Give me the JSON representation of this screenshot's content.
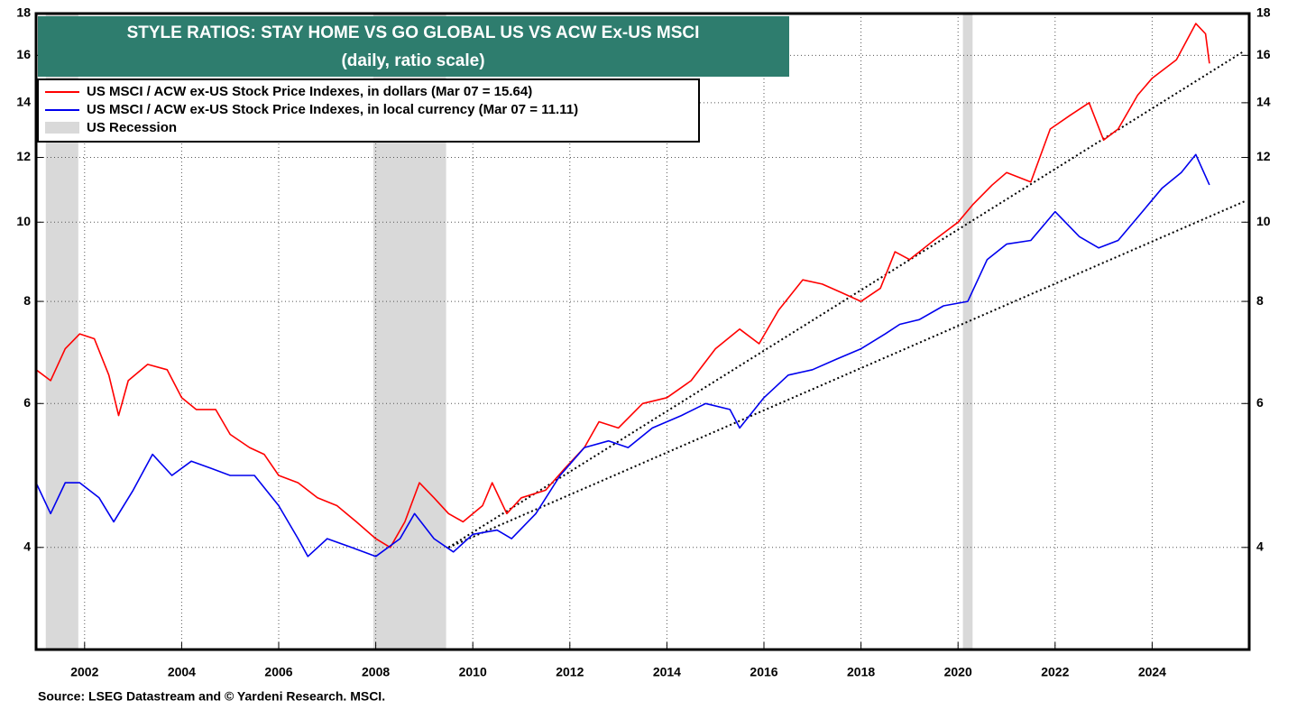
{
  "chart_data": {
    "type": "line",
    "title": "STYLE RATIOS: STAY HOME VS GO GLOBAL US VS ACW Ex-US MSCI",
    "subtitle": "(daily, ratio scale)",
    "source": "Source: LSEG Datastream and © Yardeni Research. MSCI.",
    "log_scale": true,
    "xlim": [
      2001,
      2026
    ],
    "xticks": [
      2002,
      2004,
      2006,
      2008,
      2010,
      2012,
      2014,
      2016,
      2018,
      2020,
      2022,
      2024
    ],
    "ylim": [
      3,
      18
    ],
    "yticks": [
      4,
      6,
      8,
      10,
      12,
      14,
      16,
      18
    ],
    "series": [
      {
        "name": "US MSCI / ACW ex-US Stock Price Indexes, in dollars (Mar 07 = 15.64)",
        "color": "#ff0000",
        "x": [
          2001.0,
          2001.3,
          2001.6,
          2001.9,
          2002.2,
          2002.5,
          2002.7,
          2002.9,
          2003.3,
          2003.7,
          2004.0,
          2004.3,
          2004.7,
          2005.0,
          2005.4,
          2005.7,
          2006.0,
          2006.4,
          2006.8,
          2007.2,
          2007.6,
          2008.0,
          2008.3,
          2008.6,
          2008.9,
          2009.2,
          2009.5,
          2009.8,
          2010.2,
          2010.4,
          2010.7,
          2011.0,
          2011.5,
          2011.9,
          2012.3,
          2012.6,
          2013.0,
          2013.5,
          2014.0,
          2014.5,
          2015.0,
          2015.5,
          2015.9,
          2016.3,
          2016.8,
          2017.2,
          2017.6,
          2018.0,
          2018.4,
          2018.7,
          2019.0,
          2019.5,
          2020.0,
          2020.3,
          2020.7,
          2021.0,
          2021.5,
          2021.9,
          2022.3,
          2022.7,
          2023.0,
          2023.3,
          2023.7,
          2024.0,
          2024.5,
          2024.9,
          2025.1,
          2025.18
        ],
        "values": [
          6.6,
          6.4,
          7.0,
          7.3,
          7.2,
          6.5,
          5.8,
          6.4,
          6.7,
          6.6,
          6.1,
          5.9,
          5.9,
          5.5,
          5.3,
          5.2,
          4.9,
          4.8,
          4.6,
          4.5,
          4.3,
          4.1,
          4.0,
          4.3,
          4.8,
          4.6,
          4.4,
          4.3,
          4.5,
          4.8,
          4.4,
          4.6,
          4.7,
          5.0,
          5.3,
          5.7,
          5.6,
          6.0,
          6.1,
          6.4,
          7.0,
          7.4,
          7.1,
          7.8,
          8.5,
          8.4,
          8.2,
          8.0,
          8.3,
          9.2,
          9.0,
          9.5,
          10.0,
          10.5,
          11.1,
          11.5,
          11.2,
          13.0,
          13.5,
          14.0,
          12.6,
          13.0,
          14.3,
          15.0,
          15.8,
          17.5,
          17.0,
          15.64
        ]
      },
      {
        "name": "US MSCI / ACW ex-US Stock Price Indexes, in local currency (Mar 07 = 11.11)",
        "color": "#0000ee",
        "x": [
          2001.0,
          2001.3,
          2001.6,
          2001.9,
          2002.3,
          2002.6,
          2003.0,
          2003.4,
          2003.8,
          2004.2,
          2004.6,
          2005.0,
          2005.5,
          2006.0,
          2006.4,
          2006.6,
          2007.0,
          2007.5,
          2008.0,
          2008.5,
          2008.8,
          2009.2,
          2009.6,
          2010.0,
          2010.5,
          2010.8,
          2011.3,
          2011.8,
          2012.3,
          2012.8,
          2013.2,
          2013.7,
          2014.3,
          2014.8,
          2015.3,
          2015.5,
          2016.0,
          2016.5,
          2017.0,
          2017.5,
          2018.0,
          2018.5,
          2018.8,
          2019.2,
          2019.7,
          2020.2,
          2020.6,
          2021.0,
          2021.5,
          2022.0,
          2022.5,
          2022.9,
          2023.3,
          2023.8,
          2024.2,
          2024.6,
          2024.9,
          2025.18
        ],
        "values": [
          4.8,
          4.4,
          4.8,
          4.8,
          4.6,
          4.3,
          4.7,
          5.2,
          4.9,
          5.1,
          5.0,
          4.9,
          4.9,
          4.5,
          4.1,
          3.9,
          4.1,
          4.0,
          3.9,
          4.1,
          4.4,
          4.1,
          3.95,
          4.15,
          4.2,
          4.1,
          4.4,
          4.9,
          5.3,
          5.4,
          5.3,
          5.6,
          5.8,
          6.0,
          5.9,
          5.6,
          6.1,
          6.5,
          6.6,
          6.8,
          7.0,
          7.3,
          7.5,
          7.6,
          7.9,
          8.0,
          9.0,
          9.4,
          9.5,
          10.3,
          9.6,
          9.3,
          9.5,
          10.3,
          11.0,
          11.5,
          12.1,
          11.11
        ]
      }
    ],
    "trend_lines": [
      {
        "color": "#000000",
        "x": [
          2009.5,
          2025.9
        ],
        "values": [
          4.0,
          16.2
        ]
      },
      {
        "color": "#000000",
        "x": [
          2009.5,
          2025.9
        ],
        "values": [
          4.0,
          10.6
        ]
      }
    ],
    "recession_label": "US Recession",
    "recession_color": "#d9d9d9",
    "recessions": [
      [
        2001.2,
        2001.87
      ],
      [
        2007.95,
        2009.45
      ],
      [
        2020.1,
        2020.3
      ]
    ],
    "title_color": "#2e7d6e"
  }
}
